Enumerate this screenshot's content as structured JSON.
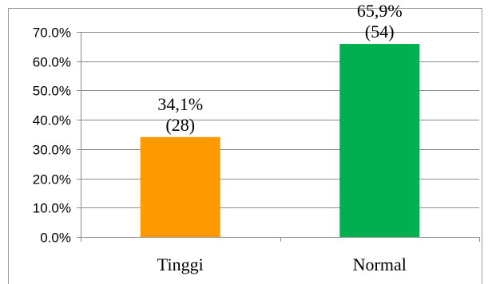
{
  "chart_data": {
    "type": "bar",
    "categories": [
      "Tinggi",
      "Normal"
    ],
    "values": [
      34.1,
      65.9
    ],
    "counts": [
      28,
      54
    ],
    "value_labels": [
      "34,1%",
      "65,9%"
    ],
    "count_labels": [
      "(28)",
      "(54)"
    ],
    "bar_colors": [
      "#ff9900",
      "#00b050"
    ],
    "ylim": [
      0,
      70
    ],
    "yticks": [
      0,
      10,
      20,
      30,
      40,
      50,
      60,
      70
    ],
    "ytick_labels": [
      "0.0%",
      "10.0%",
      "20.0%",
      "30.0%",
      "40.0%",
      "50.0%",
      "60.0%",
      "70.0%"
    ],
    "grid": true,
    "legend": "none",
    "title": "",
    "xlabel": "",
    "ylabel": ""
  }
}
